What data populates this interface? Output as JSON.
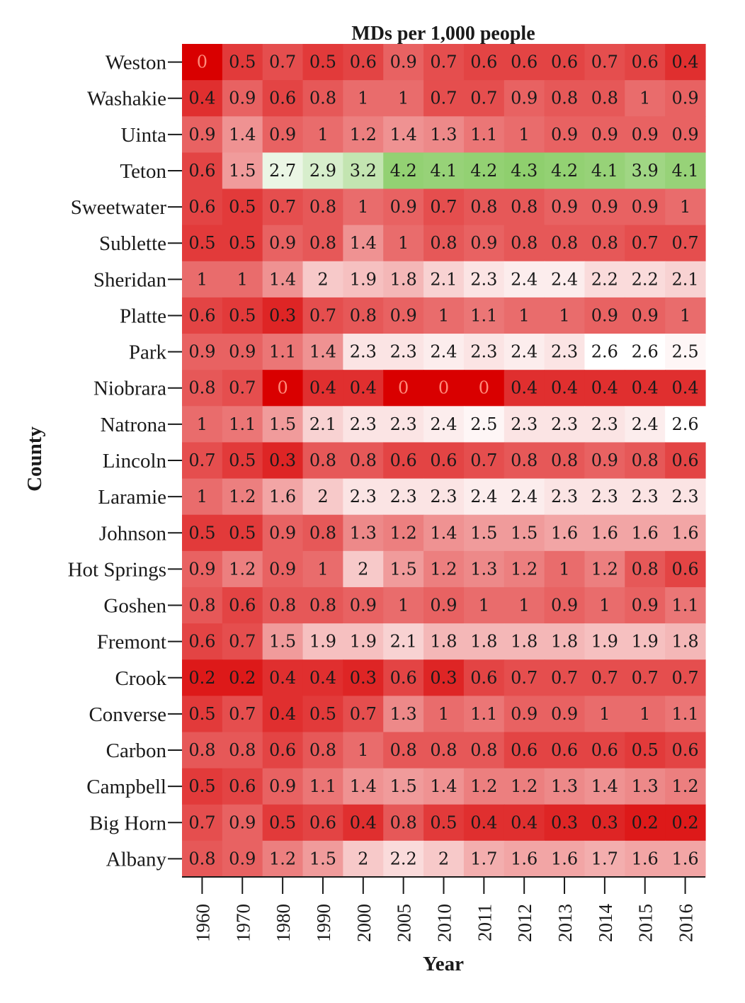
{
  "chart_data": {
    "type": "heatmap",
    "title": "MDs per 1,000 people",
    "xlabel": "Year",
    "ylabel": "County",
    "x": [
      "1960",
      "1970",
      "1980",
      "1990",
      "2000",
      "2005",
      "2010",
      "2011",
      "2012",
      "2013",
      "2014",
      "2015",
      "2016"
    ],
    "y": [
      "Weston",
      "Washakie",
      "Uinta",
      "Teton",
      "Sweetwater",
      "Sublette",
      "Sheridan",
      "Platte",
      "Park",
      "Niobrara",
      "Natrona",
      "Lincoln",
      "Laramie",
      "Johnson",
      "Hot Springs",
      "Goshen",
      "Fremont",
      "Crook",
      "Converse",
      "Carbon",
      "Campbell",
      "Big Horn",
      "Albany"
    ],
    "values": [
      [
        0,
        0.5,
        0.7,
        0.5,
        0.6,
        0.9,
        0.7,
        0.6,
        0.6,
        0.6,
        0.7,
        0.6,
        0.4
      ],
      [
        0.4,
        0.9,
        0.6,
        0.8,
        1,
        1,
        0.7,
        0.7,
        0.9,
        0.8,
        0.8,
        1,
        0.9
      ],
      [
        0.9,
        1.4,
        0.9,
        1,
        1.2,
        1.4,
        1.3,
        1.1,
        1,
        0.9,
        0.9,
        0.9,
        0.9
      ],
      [
        0.6,
        1.5,
        2.7,
        2.9,
        3.2,
        4.2,
        4.1,
        4.2,
        4.3,
        4.2,
        4.1,
        3.9,
        4.1
      ],
      [
        0.6,
        0.5,
        0.7,
        0.8,
        1,
        0.9,
        0.7,
        0.8,
        0.8,
        0.9,
        0.9,
        0.9,
        1
      ],
      [
        0.5,
        0.5,
        0.9,
        0.8,
        1.4,
        1,
        0.8,
        0.9,
        0.8,
        0.8,
        0.8,
        0.7,
        0.7
      ],
      [
        1,
        1,
        1.4,
        2,
        1.9,
        1.8,
        2.1,
        2.3,
        2.4,
        2.4,
        2.2,
        2.2,
        2.1
      ],
      [
        0.6,
        0.5,
        0.3,
        0.7,
        0.8,
        0.9,
        1,
        1.1,
        1,
        1,
        0.9,
        0.9,
        1
      ],
      [
        0.9,
        0.9,
        1.1,
        1.4,
        2.3,
        2.3,
        2.4,
        2.3,
        2.4,
        2.3,
        2.6,
        2.6,
        2.5
      ],
      [
        0.8,
        0.7,
        0,
        0.4,
        0.4,
        0,
        0,
        0,
        0.4,
        0.4,
        0.4,
        0.4,
        0.4
      ],
      [
        1,
        1.1,
        1.5,
        2.1,
        2.3,
        2.3,
        2.4,
        2.5,
        2.3,
        2.3,
        2.3,
        2.4,
        2.6
      ],
      [
        0.7,
        0.5,
        0.3,
        0.8,
        0.8,
        0.6,
        0.6,
        0.7,
        0.8,
        0.8,
        0.9,
        0.8,
        0.6
      ],
      [
        1,
        1.2,
        1.6,
        2,
        2.3,
        2.3,
        2.3,
        2.4,
        2.4,
        2.3,
        2.3,
        2.3,
        2.3
      ],
      [
        0.5,
        0.5,
        0.9,
        0.8,
        1.3,
        1.2,
        1.4,
        1.5,
        1.5,
        1.6,
        1.6,
        1.6,
        1.6
      ],
      [
        0.9,
        1.2,
        0.9,
        1,
        2,
        1.5,
        1.2,
        1.3,
        1.2,
        1,
        1.2,
        0.8,
        0.6
      ],
      [
        0.8,
        0.6,
        0.8,
        0.8,
        0.9,
        1,
        0.9,
        1,
        1,
        0.9,
        1,
        0.9,
        1.1
      ],
      [
        0.6,
        0.7,
        1.5,
        1.9,
        1.9,
        2.1,
        1.8,
        1.8,
        1.8,
        1.8,
        1.9,
        1.9,
        1.8
      ],
      [
        0.2,
        0.2,
        0.4,
        0.4,
        0.3,
        0.6,
        0.3,
        0.6,
        0.7,
        0.7,
        0.7,
        0.7,
        0.7
      ],
      [
        0.5,
        0.7,
        0.4,
        0.5,
        0.7,
        1.3,
        1,
        1.1,
        0.9,
        0.9,
        1,
        1,
        1.1
      ],
      [
        0.8,
        0.8,
        0.6,
        0.8,
        1,
        0.8,
        0.8,
        0.8,
        0.6,
        0.6,
        0.6,
        0.5,
        0.6
      ],
      [
        0.5,
        0.6,
        0.9,
        1.1,
        1.4,
        1.5,
        1.4,
        1.2,
        1.2,
        1.3,
        1.4,
        1.3,
        1.2
      ],
      [
        0.7,
        0.9,
        0.5,
        0.6,
        0.4,
        0.8,
        0.5,
        0.4,
        0.4,
        0.3,
        0.3,
        0.2,
        0.2
      ],
      [
        0.8,
        0.9,
        1.2,
        1.5,
        2,
        2.2,
        2,
        1.7,
        1.6,
        1.6,
        1.7,
        1.6,
        1.6
      ]
    ],
    "color_scale": {
      "low": "#d90000",
      "mid": "#ffffff",
      "high": "#8fcf6e",
      "domain": [
        0,
        2.6,
        4.3
      ]
    },
    "grid": false,
    "legend": "none"
  }
}
